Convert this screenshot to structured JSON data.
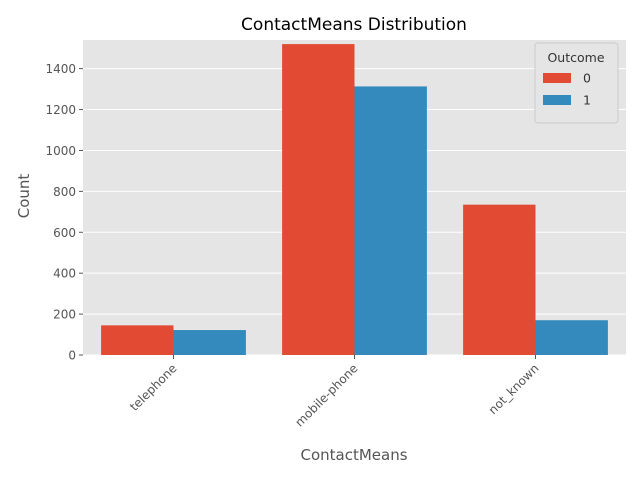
{
  "chart_data": {
    "type": "bar",
    "title": "ContactMeans Distribution",
    "xlabel": "ContactMeans",
    "ylabel": "Count",
    "categories": [
      "telephone",
      "mobile-phone",
      "not_known"
    ],
    "series": [
      {
        "name": "0",
        "values": [
          145,
          1520,
          735
        ],
        "color": "#E24A33"
      },
      {
        "name": "1",
        "values": [
          122,
          1313,
          170
        ],
        "color": "#348ABD"
      }
    ],
    "ylim": [
      0,
      1540
    ],
    "yticks": [
      0,
      200,
      400,
      600,
      800,
      1000,
      1200,
      1400
    ],
    "grid": true,
    "legend": {
      "title": "Outcome",
      "position": "top-right"
    },
    "style": {
      "background": "#E5E5E5",
      "grid_color": "#FFFFFF"
    }
  }
}
